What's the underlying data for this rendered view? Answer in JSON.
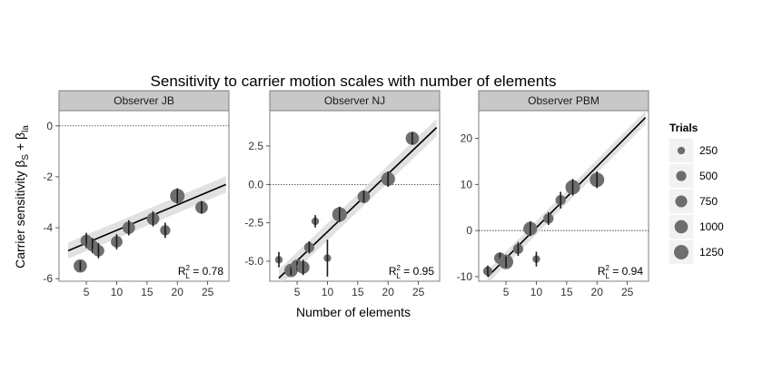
{
  "figure": {
    "title": "Sensitivity to carrier motion scales with number of elements",
    "xlabel": "Number of elements",
    "ylabel_main": "Carrier sensitivity ",
    "ylabel_b1": "β",
    "ylabel_s1": "S",
    "ylabel_plus": " + ",
    "ylabel_b2": "β",
    "ylabel_s2": "la",
    "r2_prefix": "R",
    "r2_sup": "2",
    "r2_sub": "L",
    "r2_eq": " = "
  },
  "legend": {
    "title": "Trials",
    "placement": "right",
    "entries": [
      {
        "label": "250",
        "trials": 250
      },
      {
        "label": "500",
        "trials": 500
      },
      {
        "label": "750",
        "trials": 750
      },
      {
        "label": "1000",
        "trials": 1000
      },
      {
        "label": "1250",
        "trials": 1250
      }
    ]
  },
  "colors": {
    "point": "#6e6e6e",
    "errorbar": "#1a1a1a",
    "fit": "#000000",
    "band": "#d9d9d9",
    "strip": "#c8c8c8",
    "frame": "#7f7f7f"
  },
  "chart_data": [
    {
      "type": "scatter",
      "strip": "Observer JB",
      "xlim": [
        0.5,
        28.5
      ],
      "ylim": [
        -6.1,
        0.6
      ],
      "xticks": [
        5,
        10,
        15,
        20,
        25
      ],
      "yticks": [
        0,
        -2,
        -4,
        -6
      ],
      "ytick_labels": [
        "0",
        "-2",
        "-4",
        "-6"
      ],
      "zero_line": 0,
      "fit": {
        "x": [
          2,
          28
        ],
        "y": [
          -4.9,
          -2.3
        ],
        "band": 0.2
      },
      "r2": "0.78",
      "points": [
        {
          "x": 4,
          "y": -5.5,
          "err": 0.2,
          "trials": 1000
        },
        {
          "x": 5,
          "y": -4.5,
          "err": 0.3,
          "trials": 700
        },
        {
          "x": 6,
          "y": -4.7,
          "err": 0.3,
          "trials": 700
        },
        {
          "x": 7,
          "y": -4.9,
          "err": 0.3,
          "trials": 700
        },
        {
          "x": 10,
          "y": -4.55,
          "err": 0.3,
          "trials": 700
        },
        {
          "x": 12,
          "y": -4.0,
          "err": 0.3,
          "trials": 850
        },
        {
          "x": 16,
          "y": -3.65,
          "err": 0.3,
          "trials": 850
        },
        {
          "x": 18,
          "y": -4.1,
          "err": 0.3,
          "trials": 500
        },
        {
          "x": 20,
          "y": -2.75,
          "err": 0.3,
          "trials": 1250
        },
        {
          "x": 24,
          "y": -3.2,
          "err": 0.25,
          "trials": 850
        }
      ]
    },
    {
      "type": "scatter",
      "strip": "Observer NJ",
      "xlim": [
        0.5,
        28.5
      ],
      "ylim": [
        -6.3,
        4.8
      ],
      "xticks": [
        5,
        10,
        15,
        20,
        25
      ],
      "yticks": [
        2.5,
        0.0,
        -2.5,
        -5.0
      ],
      "ytick_labels": [
        "2.5",
        "0.0",
        "-2.5",
        "-5.0"
      ],
      "zero_line": 0,
      "fit": {
        "x": [
          2,
          28
        ],
        "y": [
          -6.1,
          3.7
        ],
        "band": 0.35
      },
      "r2": "0.95",
      "points": [
        {
          "x": 2,
          "y": -4.9,
          "err": 0.5,
          "trials": 250
        },
        {
          "x": 4,
          "y": -5.6,
          "err": 0.3,
          "trials": 1000
        },
        {
          "x": 5,
          "y": -5.3,
          "err": 0.3,
          "trials": 850
        },
        {
          "x": 6,
          "y": -5.4,
          "err": 0.5,
          "trials": 900
        },
        {
          "x": 7,
          "y": -4.1,
          "err": 0.4,
          "trials": 500
        },
        {
          "x": 8,
          "y": -2.4,
          "err": 0.4,
          "trials": 250
        },
        {
          "x": 10,
          "y": -4.8,
          "err": 1.2,
          "trials": 250
        },
        {
          "x": 12,
          "y": -1.95,
          "err": 0.5,
          "trials": 1250
        },
        {
          "x": 16,
          "y": -0.8,
          "err": 0.4,
          "trials": 850
        },
        {
          "x": 20,
          "y": 0.35,
          "err": 0.5,
          "trials": 1100
        },
        {
          "x": 24,
          "y": 3.0,
          "err": 0.4,
          "trials": 1000
        }
      ]
    },
    {
      "type": "scatter",
      "strip": "Observer PBM",
      "xlim": [
        0.5,
        28.5
      ],
      "ylim": [
        -11,
        26
      ],
      "xticks": [
        5,
        10,
        15,
        20,
        25
      ],
      "yticks": [
        20,
        10,
        0,
        -10
      ],
      "ytick_labels": [
        "20",
        "10",
        "0",
        "-10"
      ],
      "zero_line": 0,
      "fit": {
        "x": [
          2,
          28
        ],
        "y": [
          -10,
          24.5
        ],
        "band": 0.9
      },
      "r2": "0.94",
      "points": [
        {
          "x": 2,
          "y": -8.8,
          "err": 1.2,
          "trials": 400
        },
        {
          "x": 4,
          "y": -6.0,
          "err": 1.2,
          "trials": 700
        },
        {
          "x": 5,
          "y": -6.8,
          "err": 1.2,
          "trials": 1250
        },
        {
          "x": 7,
          "y": -4.0,
          "err": 1.5,
          "trials": 500
        },
        {
          "x": 9,
          "y": 0.4,
          "err": 1.6,
          "trials": 1100
        },
        {
          "x": 10,
          "y": -6.2,
          "err": 1.6,
          "trials": 250
        },
        {
          "x": 12,
          "y": 2.6,
          "err": 1.4,
          "trials": 500
        },
        {
          "x": 14,
          "y": 6.6,
          "err": 1.8,
          "trials": 500
        },
        {
          "x": 16,
          "y": 9.4,
          "err": 1.8,
          "trials": 1250
        },
        {
          "x": 20,
          "y": 11.0,
          "err": 1.8,
          "trials": 1250
        }
      ]
    }
  ]
}
